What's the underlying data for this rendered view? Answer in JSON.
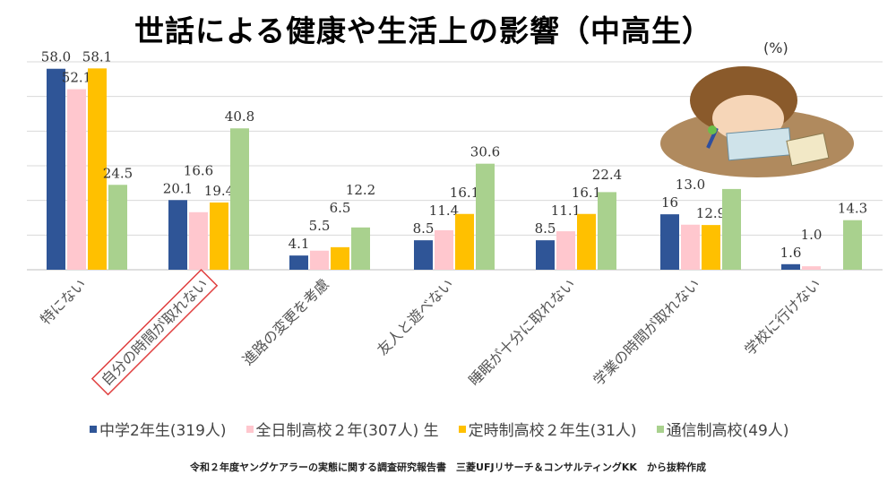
{
  "chart_data": {
    "type": "bar",
    "title": "世話による健康や生活上の影響（中高生）",
    "unit": "(%)",
    "categories": [
      "特にない",
      "自分の時間が取れない",
      "進路の変更を考慮",
      "友人と遊べない",
      "睡眠が十分に取れない",
      "学業の時間が取れない",
      "学校に行けない"
    ],
    "highlighted_category": "自分の時間が取れない",
    "series": [
      {
        "name": "中学2年生(319人)",
        "color": "#2f5597",
        "values": [
          58.0,
          20.1,
          4.1,
          8.5,
          8.5,
          16.0,
          1.6
        ],
        "labels": [
          "58.0",
          "20.1",
          "4.1",
          "8.5",
          "8.5",
          "16",
          "1.6"
        ]
      },
      {
        "name": "全日制高校２年(307人) 生",
        "color": "#ffc7ce",
        "values": [
          52.1,
          16.6,
          5.5,
          11.4,
          11.1,
          13.0,
          1.0
        ],
        "labels": [
          "52.1",
          "16.6",
          "5.5",
          "11.4",
          "11.1",
          "13.0",
          "1.0"
        ]
      },
      {
        "name": "定時制高校２年生(31人)",
        "color": "#ffc000",
        "values": [
          58.1,
          19.4,
          6.5,
          16.1,
          16.1,
          12.9,
          0
        ],
        "labels": [
          "58.1",
          "19.4",
          "6.5",
          "16.1",
          "16.1",
          "12.9",
          ""
        ]
      },
      {
        "name": "通信制高校(49人)",
        "color": "#a9d18e",
        "values": [
          24.5,
          40.8,
          12.2,
          30.6,
          22.4,
          23.3,
          14.3
        ],
        "labels": [
          "24.5",
          "40.8",
          "12.2",
          "30.6",
          "22.4",
          "",
          "14.3"
        ]
      }
    ],
    "ylim": [
      0,
      60
    ],
    "grid": true,
    "legend_position": "bottom"
  },
  "source": "令和２年度ヤングケアラーの実態に関する調査研究報告書　三菱UFJリサーチ＆コンサルティングKK　から抜粋作成"
}
